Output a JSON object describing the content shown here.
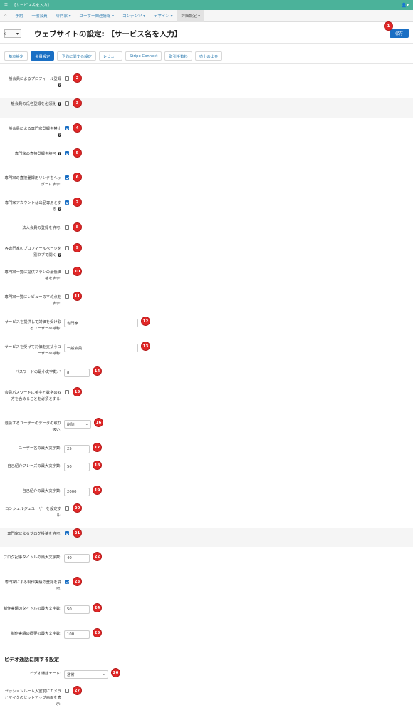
{
  "app": {
    "title": "【サービス名を入力】",
    "user_icon": "user-icon",
    "accent": "#4bb29a",
    "primary": "#1a6fc4",
    "badge_color": "#e12727"
  },
  "menu": [
    {
      "label": "予約"
    },
    {
      "label": "一般会員"
    },
    {
      "label": "専門家 ▾"
    },
    {
      "label": "ユーザー関連情報 ▾"
    },
    {
      "label": "コンテンツ ▾"
    },
    {
      "label": "デザイン ▾"
    },
    {
      "label": "詳細設定 ▾"
    }
  ],
  "page": {
    "title": "ウェブサイトの設定: 【サービス名を入力】",
    "save_label": "保存",
    "save_badge": "1"
  },
  "tabs": [
    "基本設定",
    "会員設定",
    "予約に関する設定",
    "レビュー",
    "Stripe Connect",
    "取引手数料",
    "売上の出金"
  ],
  "fields": [
    {
      "label": "一般会員によるプロフィール登録",
      "help": true,
      "type": "checkbox",
      "checked": false,
      "badge": "2"
    },
    {
      "label": "一般会員の氏名登録を必須化",
      "help": true,
      "type": "checkbox",
      "checked": false,
      "badge": "3"
    },
    {
      "label": "一般会員による専門家登録を禁止",
      "help": true,
      "type": "checkbox",
      "checked": true,
      "badge": "4"
    },
    {
      "label": "専門家の直接登録を許可",
      "help": true,
      "type": "checkbox",
      "checked": true,
      "badge": "5"
    },
    {
      "label": "専門家の直接登録用リンクをヘッダーに表示:",
      "help": false,
      "type": "checkbox",
      "checked": true,
      "badge": "6"
    },
    {
      "label": "専門家アカウントは出品専用とする",
      "help": true,
      "type": "checkbox",
      "checked": true,
      "badge": "7"
    },
    {
      "label": "法人会員の登録を許可:",
      "help": false,
      "type": "checkbox",
      "checked": false,
      "badge": "8"
    },
    {
      "label": "各専門家のプロフィールページを別タブで開く",
      "help": true,
      "type": "checkbox",
      "checked": false,
      "badge": "9"
    },
    {
      "label": "専門家一覧に提供プランの最低価格を表示:",
      "help": false,
      "type": "checkbox",
      "checked": false,
      "badge": "10"
    },
    {
      "label": "専門家一覧にレビューの平均点を表示:",
      "help": false,
      "type": "checkbox",
      "checked": false,
      "badge": "11"
    },
    {
      "label": "サービスを提供して対価を受け取るユーザーの呼称:",
      "help": false,
      "type": "text",
      "value": "専門家",
      "badge": "12"
    },
    {
      "label": "サービスを受けて対価を支払うユーザーの呼称:",
      "help": false,
      "type": "text",
      "value": "一般会員",
      "badge": "13"
    },
    {
      "label": "パスワードの最小文字数: *",
      "help": false,
      "type": "text",
      "value": "8",
      "badge": "14"
    },
    {
      "label": "会員パスワードに英字と数字の双方を含めることを必須とする:",
      "help": false,
      "type": "checkbox",
      "checked": false,
      "badge": "15"
    },
    {
      "label": "退会するユーザーのデータの取り扱い:",
      "help": false,
      "type": "select",
      "value": "削除",
      "badge": "16"
    },
    {
      "label": "ユーザー名の最大文字数:",
      "help": false,
      "type": "text",
      "value": "25",
      "badge": "17"
    },
    {
      "label": "自己紹介フレーズの最大文字数:",
      "help": false,
      "type": "text",
      "value": "50",
      "badge": "18"
    },
    {
      "label": "自己紹介の最大文字数:",
      "help": false,
      "type": "text",
      "value": "2000",
      "badge": "19"
    },
    {
      "label": "コンシェルジュユーザーを設定する:",
      "help": false,
      "type": "checkbox",
      "checked": false,
      "badge": "20"
    },
    {
      "label": "専門家によるブログ投稿を許可:",
      "help": false,
      "type": "checkbox",
      "checked": true,
      "badge": "21"
    },
    {
      "label": "ブログ記事タイトルの最大文字数:",
      "help": false,
      "type": "text",
      "value": "40",
      "badge": "22"
    },
    {
      "label": "専門家による制作実績の登録を許可:",
      "help": false,
      "type": "checkbox",
      "checked": true,
      "badge": "23"
    },
    {
      "label": "制作実績のタイトルの最大文字数:",
      "help": false,
      "type": "text",
      "value": "50",
      "badge": "24"
    },
    {
      "label": "制作実績の概要の最大文字数:",
      "help": false,
      "type": "text",
      "value": "100",
      "badge": "25"
    }
  ],
  "video_section": {
    "title": "ビデオ通話に関する設定",
    "fields": [
      {
        "label": "ビデオ通話モード:",
        "type": "select",
        "value": "通常",
        "badge": "26"
      },
      {
        "label": "セッションルーム入室前にカメラとマイクのセットアップ画面を表示:",
        "type": "checkbox",
        "checked": false,
        "badge": "27"
      }
    ]
  }
}
